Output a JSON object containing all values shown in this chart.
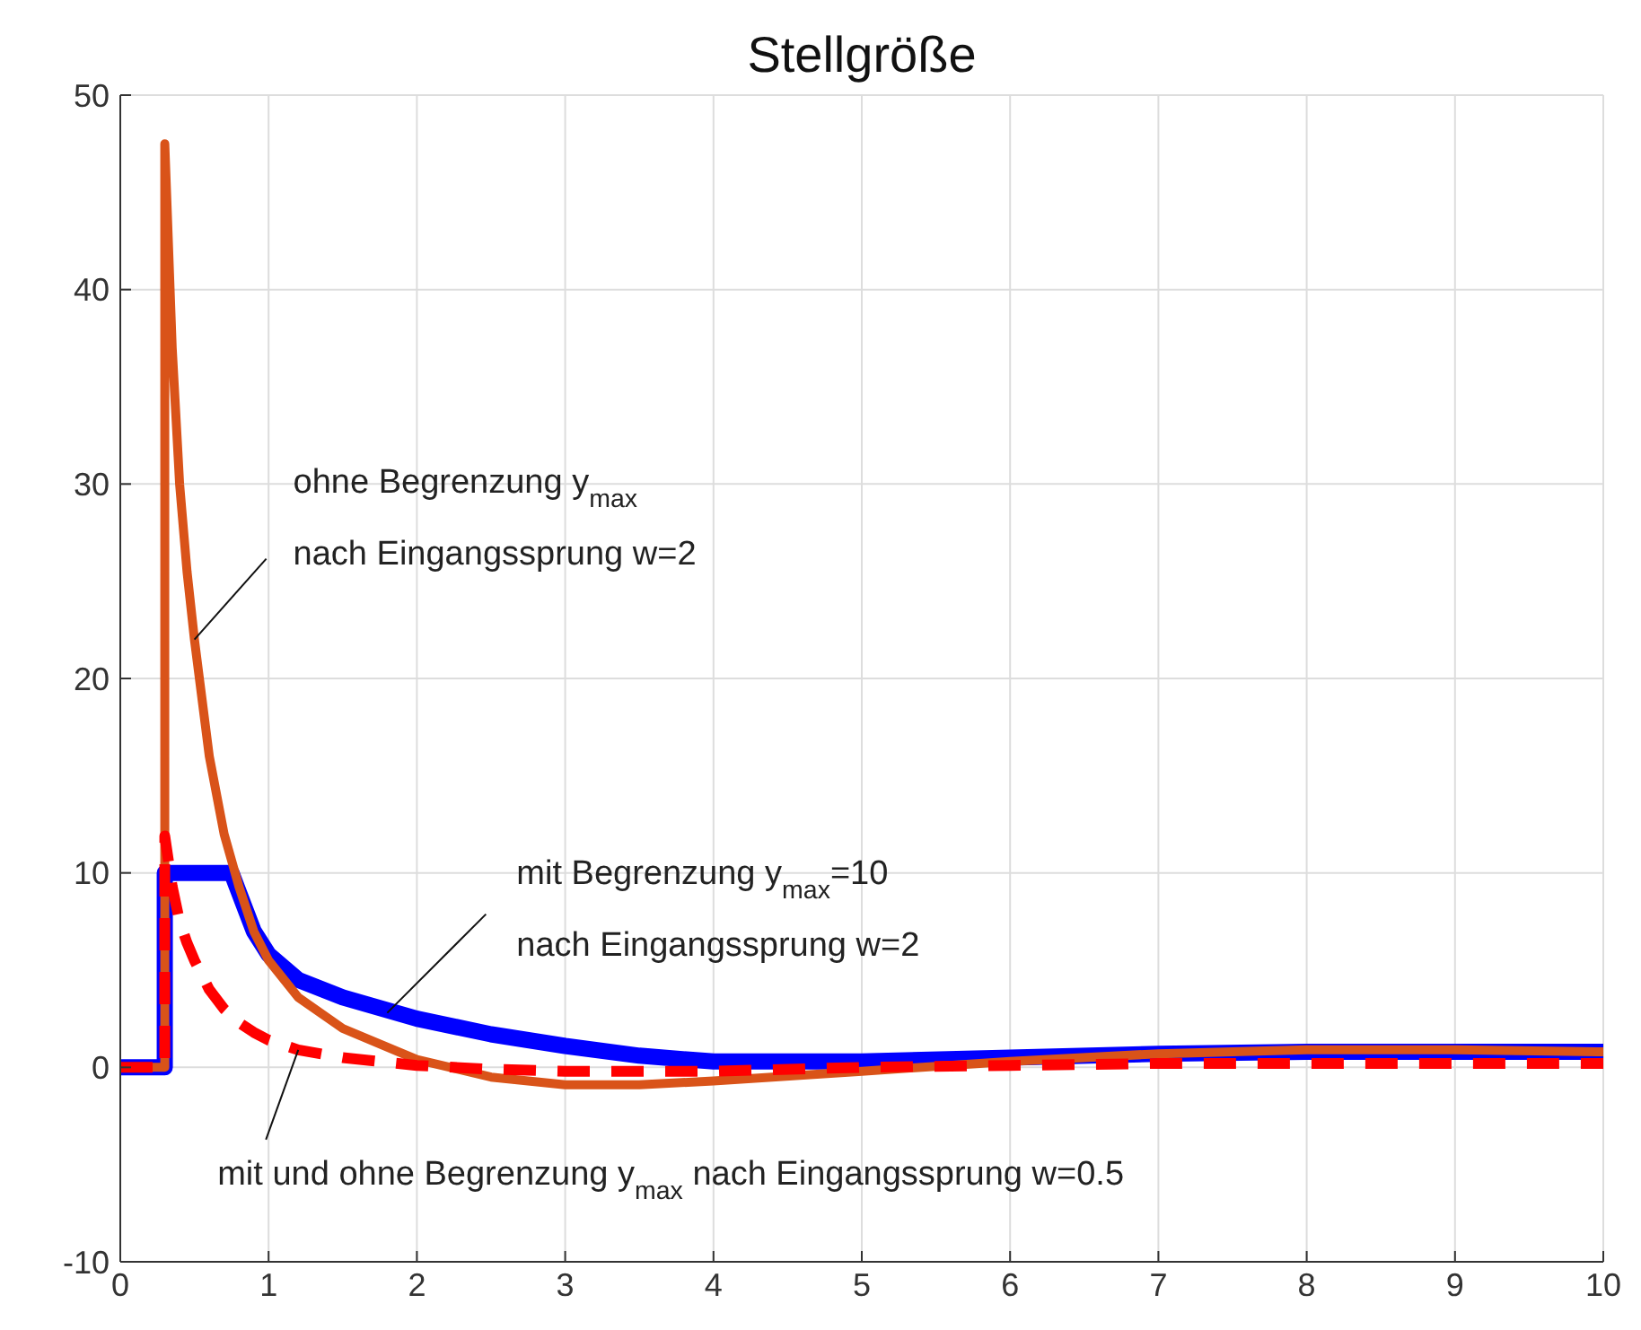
{
  "chart_data": {
    "type": "line",
    "title": "Stellgröße",
    "xlim": [
      0,
      10
    ],
    "xticks": [
      0,
      1,
      2,
      3,
      4,
      5,
      6,
      7,
      8,
      9,
      10
    ],
    "ylim": [
      -10,
      50
    ],
    "yticks": [
      -10,
      0,
      10,
      20,
      30,
      40,
      50
    ],
    "grid": true,
    "marker": "none",
    "series": [
      {
        "color": "#0000ff",
        "line_style": "solid",
        "x": [
          0,
          0.3,
          0.3,
          0.75,
          0.8,
          0.9,
          1,
          1.2,
          1.5,
          2,
          2.5,
          3,
          3.5,
          4,
          5,
          6,
          7,
          8,
          9,
          10
        ],
        "values": [
          0,
          0,
          10,
          10,
          9,
          7,
          5.8,
          4.5,
          3.6,
          2.5,
          1.7,
          1.1,
          0.6,
          0.3,
          0.3,
          0.5,
          0.7,
          0.8,
          0.8,
          0.8
        ]
      },
      {
        "color": "#d95319",
        "line_style": "solid",
        "x": [
          0,
          0.3,
          0.3,
          0.35,
          0.4,
          0.45,
          0.5,
          0.6,
          0.7,
          0.8,
          0.9,
          1,
          1.2,
          1.5,
          2,
          2.5,
          3,
          3.5,
          4,
          5,
          6,
          7,
          8,
          9,
          10
        ],
        "values": [
          0,
          0,
          47.5,
          37,
          30,
          25.5,
          22,
          16,
          12,
          9.3,
          7,
          5.5,
          3.6,
          2,
          0.4,
          -0.5,
          -0.9,
          -0.9,
          -0.7,
          -0.2,
          0.3,
          0.7,
          0.9,
          0.9,
          0.8
        ]
      },
      {
        "color": "#ff0000",
        "line_style": "dashed",
        "x": [
          0,
          0.3,
          0.3,
          0.35,
          0.4,
          0.45,
          0.5,
          0.6,
          0.7,
          0.8,
          0.9,
          1,
          1.2,
          1.5,
          2,
          2.5,
          3,
          3.5,
          4,
          5,
          6,
          7,
          8,
          9,
          10
        ],
        "values": [
          0,
          0,
          11.9,
          9.3,
          7.5,
          6.4,
          5.5,
          4,
          3,
          2.3,
          1.8,
          1.4,
          0.9,
          0.5,
          0.1,
          -0.1,
          -0.2,
          -0.2,
          -0.2,
          0,
          0.1,
          0.2,
          0.2,
          0.2,
          0.2
        ]
      }
    ],
    "annotations": [
      {
        "text": "ohne Begrenzung y$_{max}$\nnach Eingangssprung w=2",
        "x": 0.5,
        "y": 22
      },
      {
        "text": "mit Begrenzung y$_{max}$=10\nnach Eingangssprung w=2",
        "x": 1.8,
        "y": 2.8
      },
      {
        "text": "mit und ohne Begrenzung y$_{max}$ nach Eingangssprung w=0.5",
        "x": 1.2,
        "y": 0.9
      }
    ]
  }
}
